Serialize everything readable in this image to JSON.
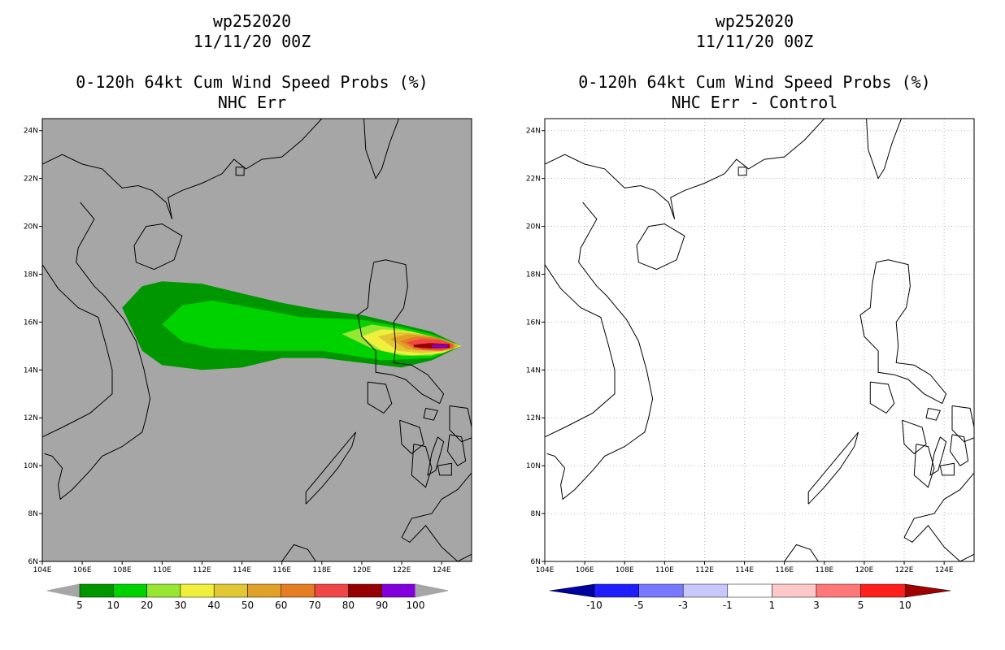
{
  "left_panel": {
    "storm_id": "wp252020",
    "datetime": "11/11/20 00Z",
    "product": "0-120h 64kt Cum Wind Speed Probs (%)",
    "subtitle": "NHC Err",
    "colorbar": {
      "labels": [
        "5",
        "10",
        "20",
        "30",
        "40",
        "50",
        "60",
        "70",
        "80",
        "90",
        "100"
      ],
      "colors": [
        "#009600",
        "#00d200",
        "#96e632",
        "#f0f03c",
        "#e1c832",
        "#e1a028",
        "#e67d23",
        "#f04646",
        "#960000",
        "#8200dc"
      ]
    }
  },
  "right_panel": {
    "storm_id": "wp252020",
    "datetime": "11/11/20 00Z",
    "product": "0-120h 64kt Cum Wind Speed Probs (%)",
    "subtitle": "NHC Err - Control",
    "colorbar": {
      "labels": [
        "-10",
        "-5",
        "-3",
        "-1",
        "1",
        "3",
        "5",
        "10"
      ],
      "colors": [
        "#0000a0",
        "#1e1eff",
        "#7878ff",
        "#c8c8ff",
        "#ffffff",
        "#ffc8c8",
        "#ff7878",
        "#ff1e1e",
        "#a00000"
      ]
    }
  },
  "map": {
    "lon_range": [
      104,
      125.5
    ],
    "lat_range": [
      6,
      24.5
    ],
    "lon_ticks": [
      "104E",
      "106E",
      "108E",
      "110E",
      "112E",
      "114E",
      "116E",
      "118E",
      "120E",
      "122E",
      "124E"
    ],
    "lat_ticks": [
      "6N",
      "8N",
      "10N",
      "12N",
      "14N",
      "16N",
      "18N",
      "20N",
      "22N",
      "24N"
    ],
    "left_background": "#a6a6a6",
    "right_background": "#ffffff"
  },
  "probability_contours": [
    {
      "level": 5,
      "color": "#009600",
      "poly": [
        [
          108.0,
          16.6
        ],
        [
          109.0,
          17.5
        ],
        [
          110.0,
          17.7
        ],
        [
          112.0,
          17.6
        ],
        [
          114.0,
          17.2
        ],
        [
          116.0,
          16.8
        ],
        [
          118.0,
          16.5
        ],
        [
          120.0,
          16.3
        ],
        [
          122.0,
          15.9
        ],
        [
          123.5,
          15.6
        ],
        [
          125.0,
          15.0
        ],
        [
          123.5,
          14.4
        ],
        [
          122.0,
          14.1
        ],
        [
          120.0,
          14.3
        ],
        [
          118.0,
          14.5
        ],
        [
          116.0,
          14.5
        ],
        [
          114.0,
          14.1
        ],
        [
          112.0,
          14.0
        ],
        [
          110.0,
          14.2
        ],
        [
          109.0,
          14.8
        ]
      ]
    },
    {
      "level": 10,
      "color": "#00d200",
      "poly": [
        [
          110.0,
          15.9
        ],
        [
          111.0,
          16.7
        ],
        [
          112.5,
          16.9
        ],
        [
          114.5,
          16.6
        ],
        [
          117.0,
          16.2
        ],
        [
          120.0,
          16.1
        ],
        [
          122.0,
          15.8
        ],
        [
          123.5,
          15.5
        ],
        [
          125.0,
          15.0
        ],
        [
          123.5,
          14.5
        ],
        [
          121.0,
          14.4
        ],
        [
          118.0,
          14.8
        ],
        [
          115.0,
          14.8
        ],
        [
          112.5,
          14.9
        ],
        [
          111.0,
          15.2
        ]
      ]
    },
    {
      "level": 20,
      "color": "#96e632",
      "poly": [
        [
          119.0,
          15.5
        ],
        [
          120.5,
          15.9
        ],
        [
          122.0,
          15.7
        ],
        [
          123.5,
          15.4
        ],
        [
          125.0,
          15.0
        ],
        [
          123.5,
          14.6
        ],
        [
          122.0,
          14.6
        ],
        [
          120.5,
          14.9
        ]
      ]
    },
    {
      "level": 30,
      "color": "#f0f03c",
      "poly": [
        [
          120.0,
          15.4
        ],
        [
          121.0,
          15.7
        ],
        [
          122.5,
          15.6
        ],
        [
          124.0,
          15.3
        ],
        [
          125.0,
          15.0
        ],
        [
          124.0,
          14.7
        ],
        [
          122.5,
          14.6
        ],
        [
          121.0,
          14.8
        ]
      ]
    },
    {
      "level": 40,
      "color": "#e1c832",
      "poly": [
        [
          120.8,
          15.4
        ],
        [
          121.8,
          15.6
        ],
        [
          123.0,
          15.5
        ],
        [
          124.3,
          15.2
        ],
        [
          124.9,
          15.0
        ],
        [
          124.3,
          14.8
        ],
        [
          123.0,
          14.7
        ],
        [
          121.8,
          14.8
        ]
      ]
    },
    {
      "level": 50,
      "color": "#e1a028",
      "poly": [
        [
          121.4,
          15.3
        ],
        [
          122.3,
          15.5
        ],
        [
          123.5,
          15.4
        ],
        [
          124.5,
          15.15
        ],
        [
          124.8,
          15.0
        ],
        [
          124.5,
          14.85
        ],
        [
          123.5,
          14.8
        ],
        [
          122.3,
          14.85
        ]
      ]
    },
    {
      "level": 60,
      "color": "#e67d23",
      "poly": [
        [
          121.9,
          15.2
        ],
        [
          122.7,
          15.4
        ],
        [
          123.8,
          15.35
        ],
        [
          124.6,
          15.1
        ],
        [
          124.6,
          14.9
        ],
        [
          123.8,
          14.8
        ],
        [
          122.7,
          14.85
        ]
      ]
    },
    {
      "level": 70,
      "color": "#f04646",
      "poly": [
        [
          122.2,
          15.15
        ],
        [
          123.0,
          15.3
        ],
        [
          124.0,
          15.25
        ],
        [
          124.55,
          15.05
        ],
        [
          124.55,
          14.95
        ],
        [
          124.0,
          14.8
        ],
        [
          123.0,
          14.85
        ]
      ]
    },
    {
      "level": 80,
      "color": "#960000",
      "poly": [
        [
          122.6,
          15.05
        ],
        [
          123.4,
          15.12
        ],
        [
          124.4,
          15.08
        ],
        [
          124.4,
          14.92
        ],
        [
          123.4,
          14.9
        ],
        [
          122.6,
          14.95
        ]
      ]
    },
    {
      "level": 90,
      "color": "#8200dc",
      "poly": [
        [
          123.5,
          15.05
        ],
        [
          124.3,
          15.06
        ],
        [
          124.3,
          14.94
        ],
        [
          123.5,
          14.95
        ]
      ]
    }
  ],
  "coastlines": [
    {
      "name": "south-china",
      "pts": [
        [
          104.0,
          22.6
        ],
        [
          105.0,
          23.0
        ],
        [
          106.0,
          22.6
        ],
        [
          107.0,
          22.4
        ],
        [
          108.0,
          21.6
        ],
        [
          108.8,
          21.7
        ],
        [
          109.5,
          21.5
        ],
        [
          110.2,
          21.0
        ],
        [
          110.5,
          20.3
        ],
        [
          110.3,
          21.2
        ],
        [
          111.0,
          21.5
        ],
        [
          112.0,
          21.8
        ],
        [
          113.0,
          22.2
        ],
        [
          113.6,
          22.8
        ],
        [
          114.2,
          22.4
        ],
        [
          115.0,
          22.8
        ],
        [
          116.0,
          22.9
        ],
        [
          117.0,
          23.6
        ],
        [
          118.0,
          24.5
        ],
        [
          118.6,
          24.6
        ]
      ]
    },
    {
      "name": "hainan",
      "pts": [
        [
          108.6,
          19.2
        ],
        [
          109.2,
          20.0
        ],
        [
          110.0,
          20.1
        ],
        [
          111.0,
          19.6
        ],
        [
          110.6,
          18.6
        ],
        [
          109.6,
          18.2
        ],
        [
          108.7,
          18.5
        ],
        [
          108.6,
          19.2
        ]
      ]
    },
    {
      "name": "taiwan",
      "pts": [
        [
          120.1,
          24.6
        ],
        [
          120.2,
          23.2
        ],
        [
          120.7,
          22.0
        ],
        [
          121.0,
          22.4
        ],
        [
          121.4,
          23.5
        ],
        [
          121.9,
          24.6
        ]
      ]
    },
    {
      "name": "vietnam",
      "pts": [
        [
          105.9,
          21.0
        ],
        [
          106.6,
          20.3
        ],
        [
          105.8,
          19.1
        ],
        [
          105.7,
          18.5
        ],
        [
          106.6,
          17.5
        ],
        [
          107.1,
          17.1
        ],
        [
          108.1,
          16.1
        ],
        [
          108.7,
          15.2
        ],
        [
          109.1,
          14.0
        ],
        [
          109.4,
          12.8
        ],
        [
          109.2,
          12.0
        ],
        [
          109.0,
          11.4
        ],
        [
          108.0,
          10.8
        ],
        [
          107.0,
          10.4
        ],
        [
          106.4,
          9.8
        ],
        [
          105.5,
          9.0
        ],
        [
          104.9,
          8.6
        ],
        [
          104.8,
          9.2
        ],
        [
          105.0,
          9.9
        ],
        [
          104.5,
          10.4
        ],
        [
          104.1,
          10.5
        ]
      ]
    },
    {
      "name": "laos-border",
      "pts": [
        [
          104.0,
          18.4
        ],
        [
          104.8,
          17.4
        ],
        [
          105.8,
          16.6
        ],
        [
          106.8,
          16.2
        ],
        [
          107.2,
          15.0
        ],
        [
          107.5,
          14.0
        ],
        [
          107.5,
          13.0
        ],
        [
          106.4,
          12.2
        ],
        [
          105.0,
          11.6
        ],
        [
          104.0,
          11.2
        ]
      ]
    },
    {
      "name": "luzon",
      "pts": [
        [
          120.6,
          18.5
        ],
        [
          121.2,
          18.6
        ],
        [
          122.2,
          18.4
        ],
        [
          122.3,
          17.5
        ],
        [
          122.1,
          16.6
        ],
        [
          121.6,
          16.0
        ],
        [
          121.7,
          15.0
        ],
        [
          121.6,
          14.3
        ],
        [
          122.5,
          14.2
        ],
        [
          123.3,
          13.8
        ],
        [
          124.1,
          13.0
        ],
        [
          123.9,
          12.6
        ],
        [
          123.0,
          13.0
        ],
        [
          122.2,
          13.6
        ],
        [
          121.5,
          13.8
        ],
        [
          120.7,
          13.9
        ],
        [
          120.7,
          14.8
        ],
        [
          120.0,
          15.4
        ],
        [
          119.8,
          16.3
        ],
        [
          120.3,
          16.6
        ],
        [
          120.4,
          17.6
        ],
        [
          120.6,
          18.5
        ]
      ]
    },
    {
      "name": "mindoro",
      "pts": [
        [
          120.3,
          13.5
        ],
        [
          121.2,
          13.4
        ],
        [
          121.5,
          12.6
        ],
        [
          121.1,
          12.2
        ],
        [
          120.3,
          12.6
        ],
        [
          120.3,
          13.5
        ]
      ]
    },
    {
      "name": "panay",
      "pts": [
        [
          121.9,
          11.9
        ],
        [
          122.9,
          11.6
        ],
        [
          123.1,
          10.9
        ],
        [
          122.5,
          10.5
        ],
        [
          122.0,
          10.9
        ],
        [
          121.9,
          11.9
        ]
      ]
    },
    {
      "name": "negros",
      "pts": [
        [
          122.6,
          10.9
        ],
        [
          123.2,
          10.8
        ],
        [
          123.5,
          9.9
        ],
        [
          123.2,
          9.1
        ],
        [
          122.5,
          9.6
        ],
        [
          122.6,
          10.9
        ]
      ]
    },
    {
      "name": "samar",
      "pts": [
        [
          124.4,
          12.5
        ],
        [
          125.3,
          12.4
        ],
        [
          125.6,
          11.2
        ],
        [
          125.0,
          11.0
        ],
        [
          124.4,
          11.5
        ],
        [
          124.4,
          12.5
        ]
      ]
    },
    {
      "name": "leyte",
      "pts": [
        [
          124.4,
          11.3
        ],
        [
          125.0,
          11.2
        ],
        [
          125.2,
          10.2
        ],
        [
          124.8,
          10.0
        ],
        [
          124.3,
          10.6
        ],
        [
          124.4,
          11.3
        ]
      ]
    },
    {
      "name": "cebu",
      "pts": [
        [
          123.8,
          11.2
        ],
        [
          124.1,
          11.0
        ],
        [
          123.7,
          9.8
        ],
        [
          123.3,
          9.6
        ],
        [
          123.5,
          10.5
        ],
        [
          123.8,
          11.2
        ]
      ]
    },
    {
      "name": "bohol",
      "pts": [
        [
          123.8,
          10.0
        ],
        [
          124.5,
          10.1
        ],
        [
          124.5,
          9.6
        ],
        [
          123.9,
          9.6
        ],
        [
          123.8,
          10.0
        ]
      ]
    },
    {
      "name": "palawan",
      "pts": [
        [
          117.2,
          8.4
        ],
        [
          118.0,
          9.1
        ],
        [
          118.8,
          9.9
        ],
        [
          119.5,
          10.8
        ],
        [
          119.7,
          11.4
        ],
        [
          119.3,
          11.0
        ],
        [
          118.6,
          10.3
        ],
        [
          117.8,
          9.5
        ],
        [
          117.2,
          8.9
        ],
        [
          117.2,
          8.4
        ]
      ]
    },
    {
      "name": "mindanao",
      "pts": [
        [
          122.0,
          7.0
        ],
        [
          122.5,
          7.8
        ],
        [
          123.5,
          8.0
        ],
        [
          124.0,
          8.6
        ],
        [
          124.8,
          9.0
        ],
        [
          125.5,
          9.7
        ],
        [
          125.5,
          6.3
        ],
        [
          124.8,
          6.0
        ],
        [
          124.0,
          6.6
        ],
        [
          123.2,
          7.5
        ],
        [
          122.4,
          6.8
        ],
        [
          122.0,
          7.0
        ]
      ]
    },
    {
      "name": "borneo",
      "pts": [
        [
          116.0,
          6.0
        ],
        [
          116.6,
          6.7
        ],
        [
          117.3,
          6.5
        ],
        [
          117.7,
          6.0
        ]
      ]
    },
    {
      "name": "masbate",
      "pts": [
        [
          123.2,
          12.4
        ],
        [
          123.8,
          12.3
        ],
        [
          123.6,
          11.9
        ],
        [
          123.1,
          12.0
        ],
        [
          123.2,
          12.4
        ]
      ]
    }
  ]
}
